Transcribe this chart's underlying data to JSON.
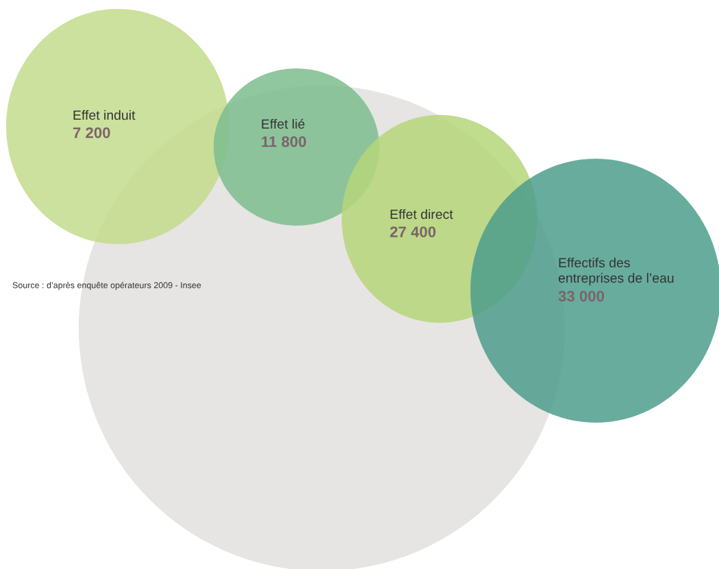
{
  "chart_data": {
    "type": "other",
    "categories": [
      "Effet induit",
      "Effet lié",
      "Effet direct",
      "Effectifs des\nentreprises de l’eau"
    ],
    "values": [
      7200,
      11800,
      27400,
      33000
    ],
    "data_labels": true,
    "colors": [
      "#c3dc8c",
      "#7dbd8e",
      "#b5d679",
      "#4d9d8c"
    ],
    "annotations": [
      "Source : d’après enquête opérateurs 2009 - Insee"
    ]
  }
}
